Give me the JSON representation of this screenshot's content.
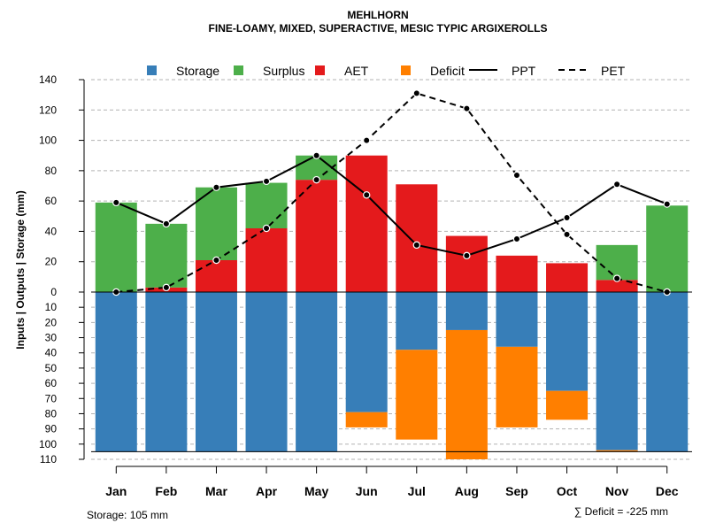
{
  "chart_data": {
    "type": "bar",
    "title": "MEHLHORN",
    "subtitle": "FINE-LOAMY, MIXED, SUPERACTIVE, MESIC TYPIC ARGIXEROLLS",
    "ylabel": "Inputs | Outputs | Storage    (mm)",
    "categories": [
      "Jan",
      "Feb",
      "Mar",
      "Apr",
      "May",
      "Jun",
      "Jul",
      "Aug",
      "Sep",
      "Oct",
      "Nov",
      "Dec"
    ],
    "upper_ticks": [
      0,
      20,
      40,
      60,
      80,
      100,
      120,
      140
    ],
    "lower_ticks": [
      10,
      20,
      30,
      40,
      50,
      60,
      70,
      80,
      90,
      100,
      110
    ],
    "ylim_upper": [
      0,
      140
    ],
    "ylim_lower": [
      0,
      110
    ],
    "legend": [
      {
        "label": "Storage",
        "color": "#377EB8",
        "kind": "box"
      },
      {
        "label": "Surplus",
        "color": "#4DAF4A",
        "kind": "box"
      },
      {
        "label": "AET",
        "color": "#E41A1C",
        "kind": "box"
      },
      {
        "label": "Deficit",
        "color": "#FF7F00",
        "kind": "box"
      },
      {
        "label": "PPT",
        "color": "#000000",
        "kind": "solid"
      },
      {
        "label": "PET",
        "color": "#000000",
        "kind": "dashed"
      }
    ],
    "series": [
      {
        "name": "AET",
        "values": [
          0,
          3,
          21,
          42,
          74,
          90,
          71,
          37,
          24,
          19,
          8,
          0
        ]
      },
      {
        "name": "Surplus",
        "values": [
          59,
          42,
          48,
          30,
          16,
          0,
          0,
          0,
          0,
          0,
          23,
          57
        ]
      },
      {
        "name": "Storage",
        "values": [
          105,
          105,
          105,
          105,
          105,
          79,
          38,
          25,
          36,
          65,
          104,
          105
        ]
      },
      {
        "name": "Deficit",
        "values": [
          0,
          0,
          0,
          0,
          0,
          10,
          59,
          85,
          53,
          19,
          1,
          0
        ]
      },
      {
        "name": "PPT",
        "values": [
          59,
          45,
          69,
          73,
          90,
          64,
          31,
          24,
          35,
          49,
          71,
          58
        ]
      },
      {
        "name": "PET",
        "values": [
          0,
          3,
          21,
          42,
          74,
          100,
          131,
          121,
          77,
          38,
          9,
          0
        ]
      }
    ],
    "storage_capacity": 105,
    "storage_note": "Storage: 105 mm",
    "deficit_note": "∑ Deficit = -225 mm"
  }
}
